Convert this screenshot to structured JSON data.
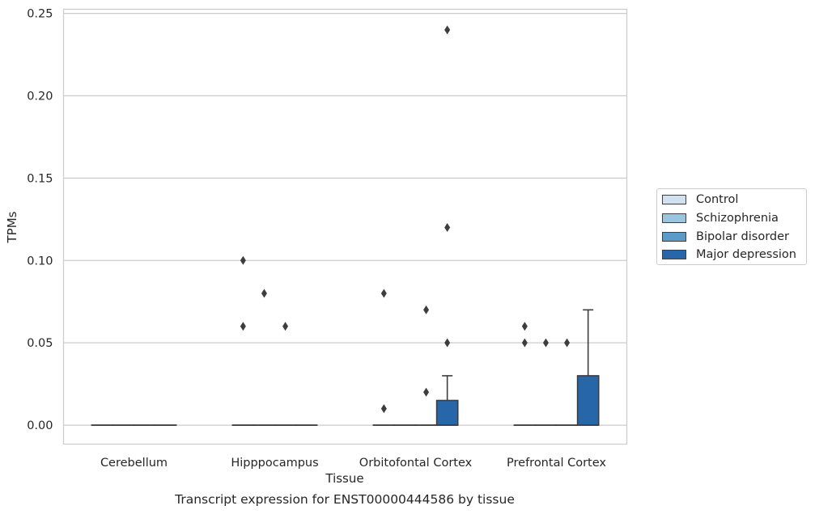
{
  "chart_data": {
    "type": "box",
    "title": "Transcript expression for ENST00000444586 by tissue",
    "xlabel": "Tissue",
    "ylabel": "TPMs",
    "ylim": [
      -0.0115,
      0.2525
    ],
    "yticks": [
      "0.00",
      "0.05",
      "0.10",
      "0.15",
      "0.20",
      "0.25"
    ],
    "grid": true,
    "legend_position": "right",
    "categories": [
      "Cerebellum",
      "Hipppocampus",
      "Orbitofontal Cortex",
      "Prefrontal Cortex"
    ],
    "series": [
      {
        "name": "Control",
        "color": "#d1e1f0",
        "boxes": [
          {
            "q1": 0,
            "median": 0,
            "q3": 0,
            "whisker_low": 0,
            "whisker_high": 0,
            "outliers": []
          },
          {
            "q1": 0,
            "median": 0,
            "q3": 0,
            "whisker_low": 0,
            "whisker_high": 0,
            "outliers": [
              0.06,
              0.1
            ]
          },
          {
            "q1": 0,
            "median": 0,
            "q3": 0,
            "whisker_low": 0,
            "whisker_high": 0,
            "outliers": [
              0.01,
              0.08
            ]
          },
          {
            "q1": 0,
            "median": 0,
            "q3": 0,
            "whisker_low": 0,
            "whisker_high": 0,
            "outliers": [
              0.05,
              0.06
            ]
          }
        ]
      },
      {
        "name": "Schizophrenia",
        "color": "#9ac5de",
        "boxes": [
          {
            "q1": 0,
            "median": 0,
            "q3": 0,
            "whisker_low": 0,
            "whisker_high": 0,
            "outliers": []
          },
          {
            "q1": 0,
            "median": 0,
            "q3": 0,
            "whisker_low": 0,
            "whisker_high": 0,
            "outliers": [
              0.08
            ]
          },
          {
            "q1": 0,
            "median": 0,
            "q3": 0,
            "whisker_low": 0,
            "whisker_high": 0,
            "outliers": []
          },
          {
            "q1": 0,
            "median": 0,
            "q3": 0,
            "whisker_low": 0,
            "whisker_high": 0,
            "outliers": [
              0.05
            ]
          }
        ]
      },
      {
        "name": "Bipolar disorder",
        "color": "#5a9cc9",
        "boxes": [
          {
            "q1": 0,
            "median": 0,
            "q3": 0,
            "whisker_low": 0,
            "whisker_high": 0,
            "outliers": []
          },
          {
            "q1": 0,
            "median": 0,
            "q3": 0,
            "whisker_low": 0,
            "whisker_high": 0,
            "outliers": [
              0.06
            ]
          },
          {
            "q1": 0,
            "median": 0,
            "q3": 0,
            "whisker_low": 0,
            "whisker_high": 0,
            "outliers": [
              0.02,
              0.07
            ]
          },
          {
            "q1": 0,
            "median": 0,
            "q3": 0,
            "whisker_low": 0,
            "whisker_high": 0,
            "outliers": [
              0.05
            ]
          }
        ]
      },
      {
        "name": "Major depression",
        "color": "#2767a9",
        "boxes": [
          {
            "q1": 0,
            "median": 0,
            "q3": 0,
            "whisker_low": 0,
            "whisker_high": 0,
            "outliers": []
          },
          {
            "q1": 0,
            "median": 0,
            "q3": 0,
            "whisker_low": 0,
            "whisker_high": 0,
            "outliers": []
          },
          {
            "q1": 0,
            "median": 0,
            "q3": 0.015,
            "whisker_low": 0,
            "whisker_high": 0.03,
            "outliers": [
              0.05,
              0.12,
              0.24
            ]
          },
          {
            "q1": 0,
            "median": 0,
            "q3": 0.03,
            "whisker_low": 0,
            "whisker_high": 0.07,
            "outliers": []
          }
        ]
      }
    ]
  }
}
